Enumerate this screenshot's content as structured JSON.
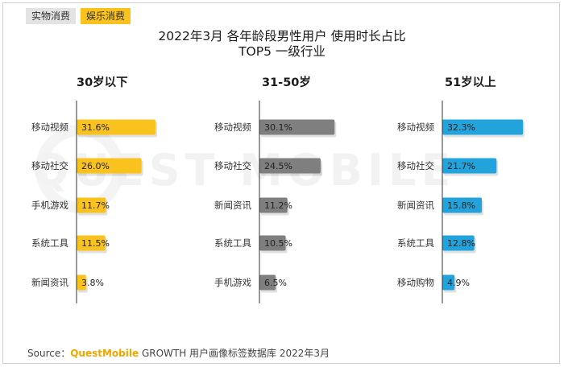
{
  "tabs": [
    {
      "label": "实物消费",
      "active": false
    },
    {
      "label": "娱乐消费",
      "active": true
    }
  ],
  "watermark": "QUEST MOBILE",
  "source": {
    "prefix": "Source：",
    "brand": "QuestMobile",
    "rest": " GROWTH 用户画像标签数据库 2022年3月"
  },
  "chart_data": {
    "type": "bar",
    "orientation": "horizontal",
    "title": "2022年3月 各年龄段男性用户 使用时长占比",
    "subtitle": "TOP5 一级行业",
    "unit": "%",
    "panels": [
      {
        "title": "30岁以下",
        "color": "#f9c21c",
        "categories": [
          "移动视频",
          "移动社交",
          "手机游戏",
          "系统工具",
          "新闻资讯"
        ],
        "values": [
          31.6,
          26.0,
          11.7,
          11.5,
          3.8
        ],
        "labels": [
          "31.6%",
          "26.0%",
          "11.7%",
          "11.5%",
          "3.8%"
        ]
      },
      {
        "title": "31-50岁",
        "color": "#7f7f7f",
        "categories": [
          "移动视频",
          "移动社交",
          "新闻资讯",
          "系统工具",
          "手机游戏"
        ],
        "values": [
          30.1,
          24.5,
          11.2,
          10.5,
          6.5
        ],
        "labels": [
          "30.1%",
          "24.5%",
          "11.2%",
          "10.5%",
          "6.5%"
        ]
      },
      {
        "title": "51岁以上",
        "color": "#22a3dc",
        "categories": [
          "移动视频",
          "移动社交",
          "新闻资讯",
          "系统工具",
          "移动购物"
        ],
        "values": [
          32.3,
          21.7,
          15.8,
          12.8,
          4.9
        ],
        "labels": [
          "32.3%",
          "21.7%",
          "15.8%",
          "12.8%",
          "4.9%"
        ]
      }
    ]
  }
}
